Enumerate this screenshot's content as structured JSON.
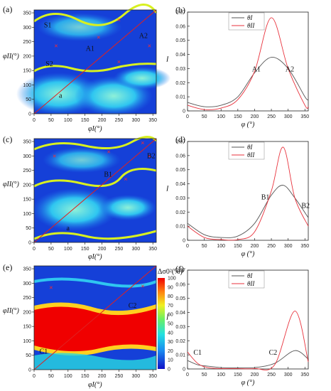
{
  "chart_data": [
    {
      "id": "a",
      "panel_label": "(a)",
      "type": "heatmap",
      "xlabel": "φI(°)",
      "ylabel": "φII(°)",
      "xticks": [
        0,
        50,
        100,
        150,
        200,
        250,
        300,
        350
      ],
      "yticks": [
        0,
        50,
        100,
        150,
        200,
        250,
        300,
        350
      ],
      "xlim": [
        0,
        360
      ],
      "ylim": [
        0,
        360
      ],
      "annotations": [
        {
          "text": "S1",
          "x": 40,
          "y": 300
        },
        {
          "text": "S2",
          "x": 45,
          "y": 165
        },
        {
          "text": "a",
          "x": 78,
          "y": 55
        },
        {
          "text": "A1",
          "x": 165,
          "y": 218
        },
        {
          "text": "A2",
          "x": 322,
          "y": 262
        }
      ],
      "markers": [
        [
          65,
          235
        ],
        [
          190,
          265
        ],
        [
          250,
          325
        ],
        [
          250,
          180
        ],
        [
          340,
          235
        ]
      ]
    },
    {
      "id": "b",
      "panel_label": "(b)",
      "type": "line",
      "ylabel": "I",
      "xlabel": "φ (°)",
      "xlim": [
        0,
        360
      ],
      "ylim": [
        0,
        0.07
      ],
      "xticks": [
        0,
        50,
        100,
        150,
        200,
        250,
        300,
        350
      ],
      "yticks": [
        0,
        0.01,
        0.02,
        0.03,
        0.04,
        0.05,
        0.06,
        0.07
      ],
      "legend": [
        "θI",
        "θII"
      ],
      "series": [
        {
          "name": "θI",
          "color": "#555555",
          "x": [
            0,
            50,
            100,
            150,
            200,
            250,
            300,
            350,
            360
          ],
          "values": [
            0.006,
            0.003,
            0.004,
            0.01,
            0.027,
            0.038,
            0.03,
            0.01,
            0.008
          ]
        },
        {
          "name": "θII",
          "color": "#e8323c",
          "x": [
            0,
            50,
            100,
            150,
            200,
            250,
            300,
            350,
            360
          ],
          "values": [
            0.004,
            0.001,
            0.002,
            0.008,
            0.028,
            0.066,
            0.03,
            0.004,
            0.003
          ]
        }
      ],
      "annotations": [
        {
          "text": "A1",
          "x": 205,
          "y": 0.024
        },
        {
          "text": "A2",
          "x": 305,
          "y": 0.024
        }
      ]
    },
    {
      "id": "c",
      "panel_label": "(c)",
      "type": "heatmap",
      "xlabel": "φI(°)",
      "ylabel": "φII(°)",
      "xticks": [
        0,
        50,
        100,
        150,
        200,
        250,
        300,
        350
      ],
      "yticks": [
        0,
        50,
        100,
        150,
        200,
        250,
        300,
        350
      ],
      "xlim": [
        0,
        360
      ],
      "ylim": [
        0,
        360
      ],
      "annotations": [
        {
          "text": "a",
          "x": 100,
          "y": 42
        },
        {
          "text": "B1",
          "x": 218,
          "y": 228
        },
        {
          "text": "B2",
          "x": 345,
          "y": 292
        }
      ],
      "markers": [
        [
          60,
          300
        ],
        [
          220,
          315
        ],
        [
          320,
          345
        ],
        [
          340,
          300
        ],
        [
          270,
          220
        ]
      ]
    },
    {
      "id": "d",
      "panel_label": "(d)",
      "type": "line",
      "ylabel": "I",
      "xlabel": "φ (°)",
      "xlim": [
        0,
        360
      ],
      "ylim": [
        0,
        0.07
      ],
      "xticks": [
        0,
        50,
        100,
        150,
        200,
        250,
        300,
        350
      ],
      "yticks": [
        0,
        0.01,
        0.02,
        0.03,
        0.04,
        0.05,
        0.06,
        0.07
      ],
      "legend": [
        "θI",
        "θII"
      ],
      "series": [
        {
          "name": "θI",
          "color": "#555555",
          "x": [
            0,
            50,
            100,
            150,
            200,
            250,
            285,
            320,
            360
          ],
          "values": [
            0.012,
            0.004,
            0.002,
            0.003,
            0.012,
            0.032,
            0.039,
            0.03,
            0.016
          ]
        },
        {
          "name": "θII",
          "color": "#e8323c",
          "x": [
            0,
            50,
            100,
            150,
            200,
            250,
            285,
            320,
            360
          ],
          "values": [
            0.01,
            0.002,
            0.0005,
            0.0005,
            0.006,
            0.035,
            0.066,
            0.03,
            0.01
          ]
        }
      ],
      "annotations": [
        {
          "text": "B1",
          "x": 232,
          "y": 0.025
        },
        {
          "text": "B2",
          "x": 352,
          "y": 0.019
        }
      ]
    },
    {
      "id": "e",
      "panel_label": "(e)",
      "type": "heatmap",
      "xlabel": "φI(°)",
      "ylabel": "φII(°)",
      "xticks": [
        0,
        50,
        100,
        150,
        200,
        250,
        300,
        350
      ],
      "yticks": [
        0,
        50,
        100,
        150,
        200,
        250,
        300,
        350
      ],
      "xlim": [
        0,
        360
      ],
      "ylim": [
        0,
        360
      ],
      "colorbar": {
        "title": "Δσ0²(%)",
        "ticks": [
          0,
          10,
          20,
          30,
          40,
          50,
          60,
          70,
          80,
          90,
          100
        ]
      },
      "annotations": [
        {
          "text": "C1",
          "x": 28,
          "y": 55
        },
        {
          "text": "C2",
          "x": 290,
          "y": 215
        }
      ],
      "markers": [
        [
          50,
          285
        ],
        [
          320,
          290
        ]
      ]
    },
    {
      "id": "f",
      "panel_label": "(f)",
      "type": "line",
      "ylabel": "I",
      "xlabel": "φ (°)",
      "xlim": [
        0,
        360
      ],
      "ylim": [
        0,
        0.07
      ],
      "xticks": [
        0,
        50,
        100,
        150,
        200,
        250,
        300,
        350
      ],
      "yticks": [
        0,
        0.01,
        0.02,
        0.03,
        0.04,
        0.05,
        0.06,
        0.07
      ],
      "legend": [
        "θI",
        "θII"
      ],
      "series": [
        {
          "name": "θI",
          "color": "#555555",
          "x": [
            0,
            30,
            60,
            100,
            150,
            200,
            260,
            320,
            360
          ],
          "values": [
            0.006,
            0.003,
            0.002,
            0.001,
            0.0008,
            0.001,
            0.004,
            0.013,
            0.007
          ]
        },
        {
          "name": "θII",
          "color": "#e8323c",
          "x": [
            0,
            30,
            60,
            100,
            150,
            200,
            260,
            320,
            360
          ],
          "values": [
            0.012,
            0.004,
            0.001,
            0.0003,
            0.0002,
            0.0003,
            0.003,
            0.041,
            0.005
          ]
        }
      ],
      "annotations": [
        {
          "text": "C1",
          "x": 30,
          "y": 0.006
        },
        {
          "text": "C2",
          "x": 255,
          "y": 0.006
        }
      ]
    }
  ]
}
